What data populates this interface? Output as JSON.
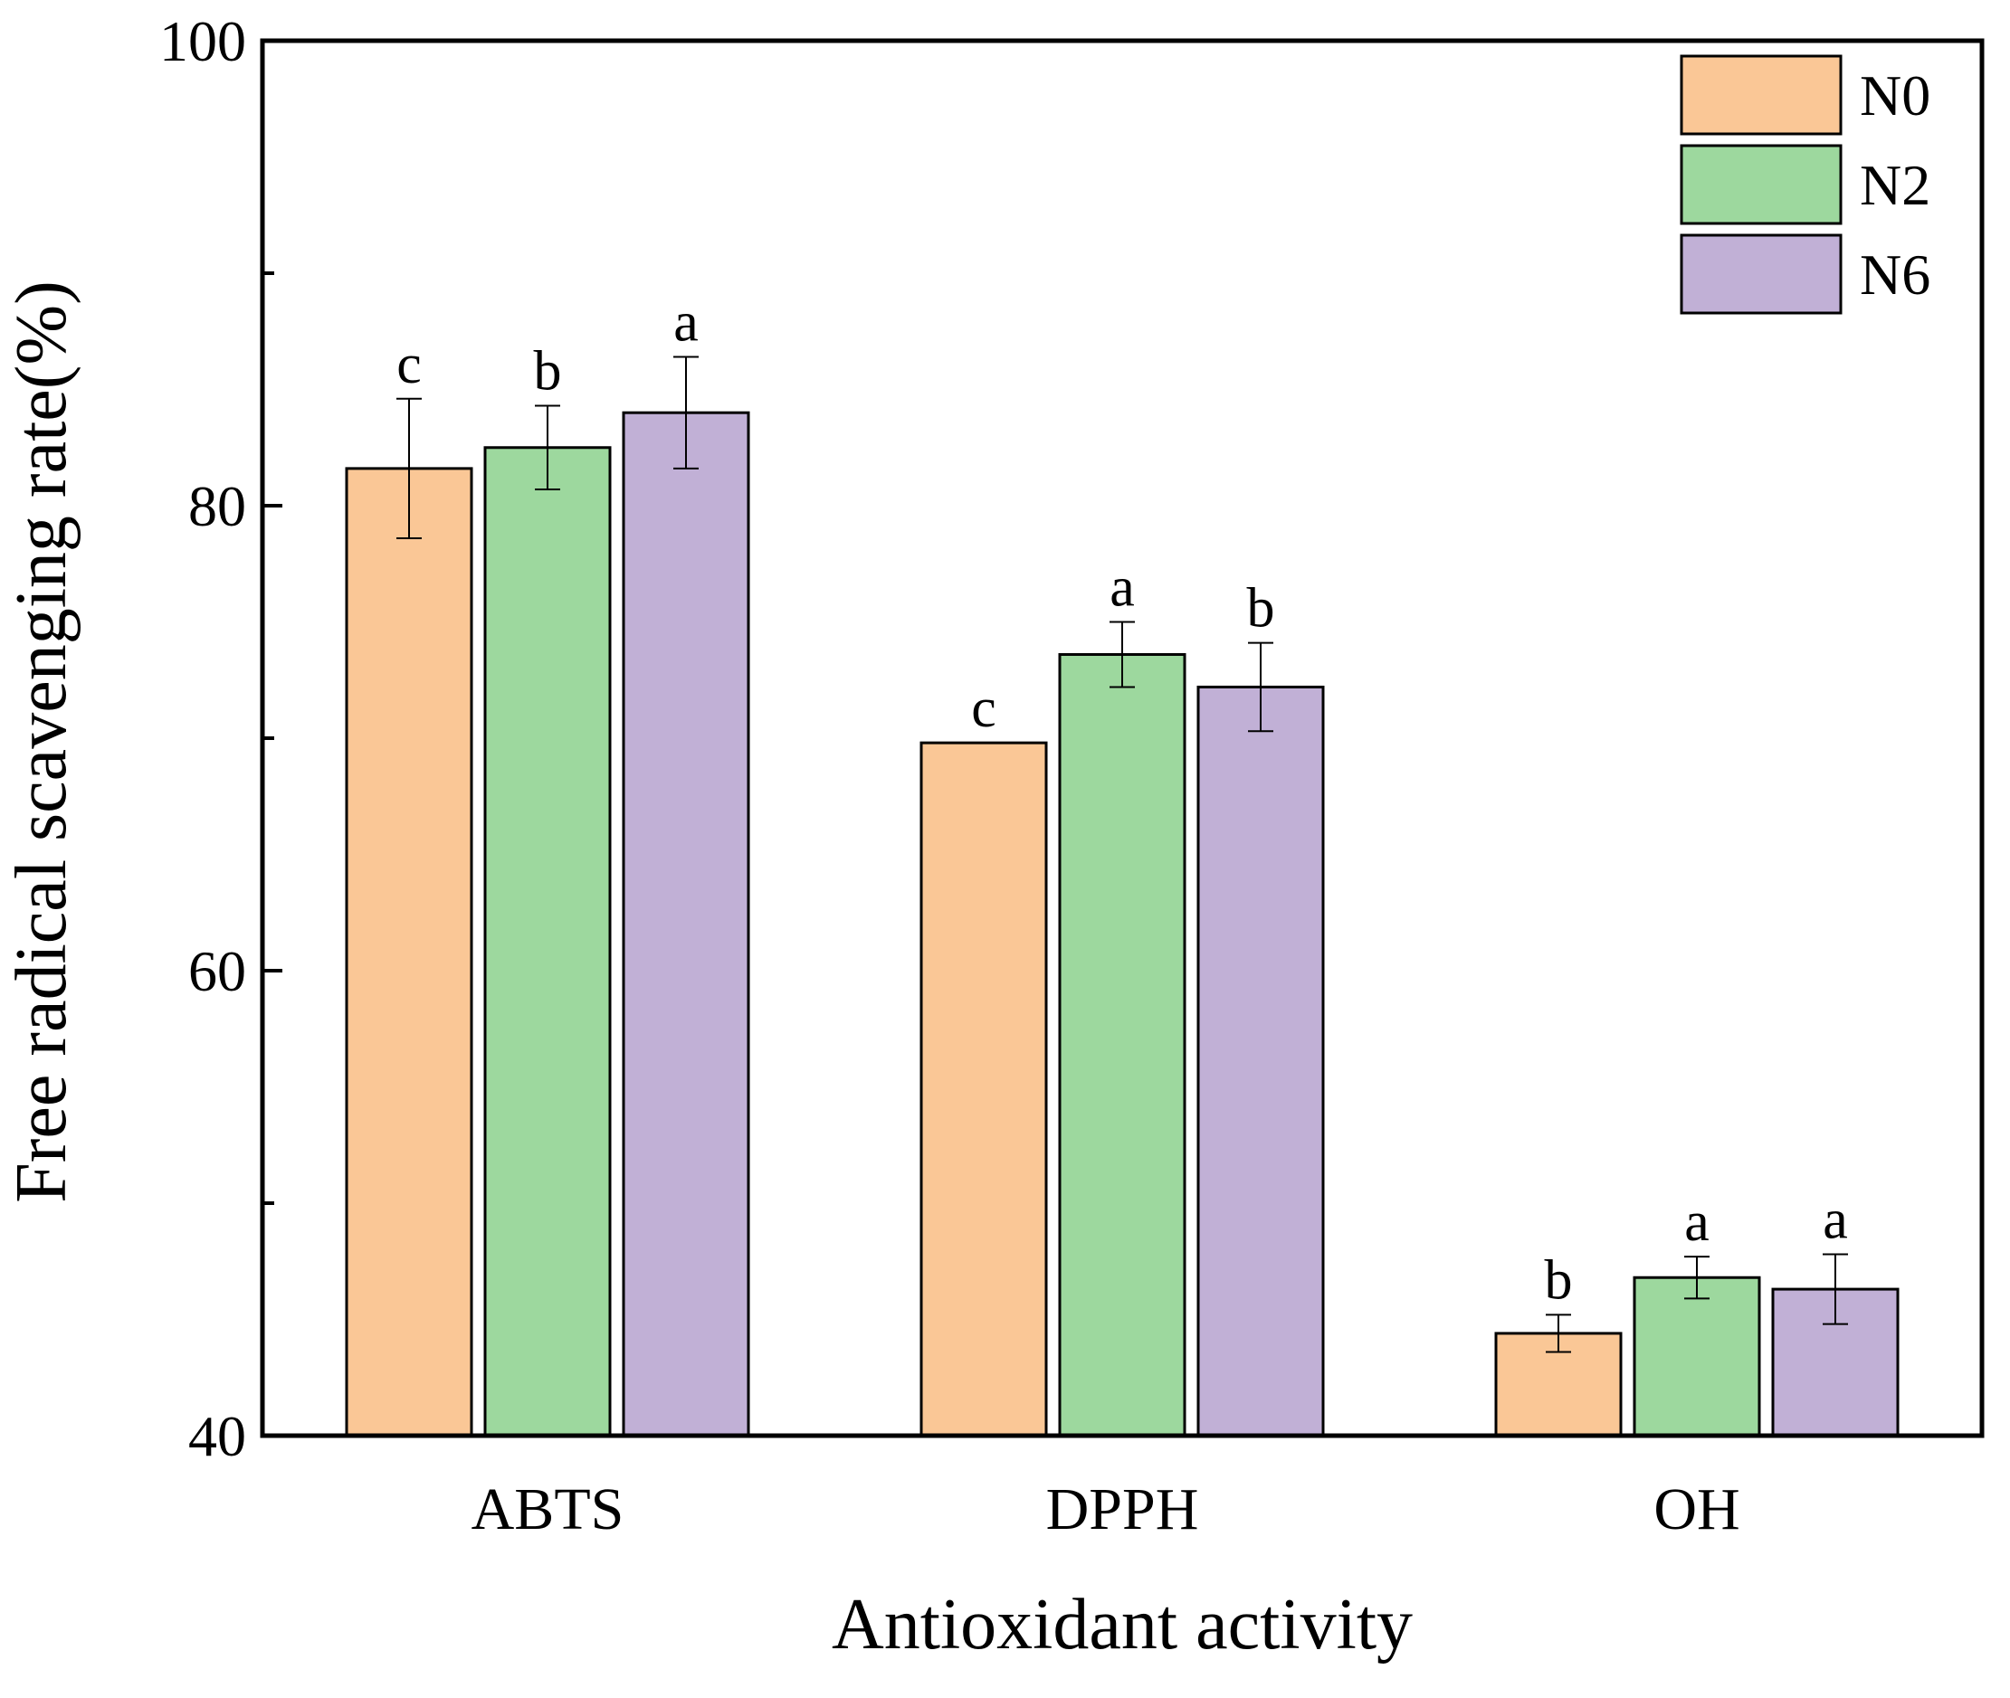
{
  "chart_data": {
    "type": "bar",
    "xlabel": "Antioxidant activity",
    "ylabel": "Free radical scavenging rate(%)",
    "ylim": [
      40,
      100
    ],
    "yticks": [
      40,
      60,
      80,
      100
    ],
    "ytick_labels": [
      "40",
      "60",
      "80",
      "100"
    ],
    "grid": false,
    "legend_position": "top-right",
    "categories": [
      "ABTS",
      "DPPH",
      "OH"
    ],
    "series": [
      {
        "name": "N0",
        "color": "#FAC796",
        "values": [
          81.6,
          69.8,
          44.4
        ],
        "errors": [
          3.0,
          0.0,
          0.8
        ],
        "letters": [
          "c",
          "c",
          "b"
        ]
      },
      {
        "name": "N2",
        "color": "#9DD89E",
        "values": [
          82.5,
          73.6,
          46.8
        ],
        "errors": [
          1.8,
          1.4,
          0.9
        ],
        "letters": [
          "b",
          "a",
          "a"
        ]
      },
      {
        "name": "N6",
        "color": "#C1B0D6",
        "values": [
          84.0,
          72.2,
          46.3
        ],
        "errors": [
          2.4,
          1.9,
          1.5
        ],
        "letters": [
          "a",
          "b",
          "a"
        ]
      }
    ]
  }
}
